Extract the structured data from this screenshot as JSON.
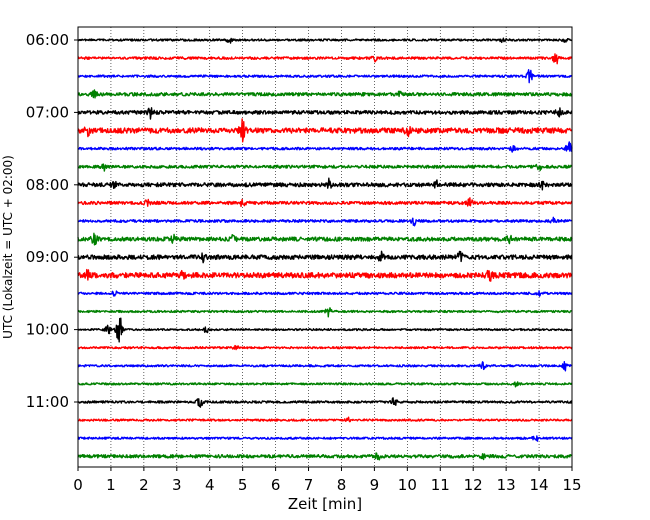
{
  "chart_data": {
    "type": "line",
    "title": "",
    "xlabel": "Zeit  [min]",
    "ylabel": "UTC (Lokalzeit = UTC + 02:00)",
    "xlim": [
      0,
      15
    ],
    "x_ticks": [
      "0",
      "1",
      "2",
      "3",
      "4",
      "5",
      "6",
      "7",
      "8",
      "9",
      "10",
      "11",
      "12",
      "13",
      "14",
      "15"
    ],
    "y_tick_labels": [
      "06:00",
      "07:00",
      "08:00",
      "09:00",
      "10:00",
      "11:00"
    ],
    "grid": "vertical dotted at each minute",
    "trace_colors": [
      "#000000",
      "#ff0000",
      "#0000ff",
      "#008000"
    ],
    "traces": [
      {
        "start": "06:00",
        "amplitude": 1.0,
        "events": [
          [
            4.6,
            3
          ],
          [
            12.9,
            2
          ],
          [
            14.8,
            2
          ]
        ]
      },
      {
        "start": "06:15",
        "amplitude": 1.2,
        "events": [
          [
            9.0,
            3
          ],
          [
            14.5,
            7
          ]
        ]
      },
      {
        "start": "06:30",
        "amplitude": 1.1,
        "events": [
          [
            13.7,
            9
          ]
        ]
      },
      {
        "start": "06:45",
        "amplitude": 1.6,
        "events": [
          [
            0.5,
            3
          ],
          [
            9.8,
            4
          ]
        ]
      },
      {
        "start": "07:00",
        "amplitude": 1.8,
        "events": [
          [
            2.2,
            5
          ],
          [
            14.6,
            5
          ]
        ]
      },
      {
        "start": "07:15",
        "amplitude": 2.6,
        "events": [
          [
            0.3,
            5
          ],
          [
            5.0,
            11
          ],
          [
            10.0,
            5
          ]
        ]
      },
      {
        "start": "07:30",
        "amplitude": 1.2,
        "events": [
          [
            13.2,
            3
          ],
          [
            14.9,
            6
          ]
        ]
      },
      {
        "start": "07:45",
        "amplitude": 1.4,
        "events": [
          [
            0.8,
            3
          ],
          [
            14.0,
            3
          ]
        ]
      },
      {
        "start": "08:00",
        "amplitude": 1.9,
        "events": [
          [
            1.1,
            4
          ],
          [
            7.6,
            5
          ],
          [
            10.9,
            3
          ],
          [
            14.1,
            5
          ]
        ]
      },
      {
        "start": "08:15",
        "amplitude": 1.5,
        "events": [
          [
            2.1,
            3
          ],
          [
            5.0,
            3
          ],
          [
            11.9,
            4
          ]
        ]
      },
      {
        "start": "08:30",
        "amplitude": 1.3,
        "events": [
          [
            10.2,
            4
          ],
          [
            14.4,
            3
          ]
        ]
      },
      {
        "start": "08:45",
        "amplitude": 2.0,
        "events": [
          [
            0.5,
            5
          ],
          [
            2.9,
            4
          ],
          [
            4.7,
            3
          ],
          [
            13.1,
            3
          ]
        ]
      },
      {
        "start": "09:00",
        "amplitude": 2.2,
        "events": [
          [
            3.8,
            4
          ],
          [
            9.2,
            4
          ],
          [
            11.6,
            4
          ]
        ]
      },
      {
        "start": "09:15",
        "amplitude": 2.6,
        "events": [
          [
            0.3,
            5
          ],
          [
            3.2,
            4
          ],
          [
            12.5,
            5
          ]
        ]
      },
      {
        "start": "09:30",
        "amplitude": 1.1,
        "events": [
          [
            1.1,
            3
          ],
          [
            14.0,
            3
          ]
        ]
      },
      {
        "start": "09:45",
        "amplitude": 1.0,
        "events": [
          [
            7.6,
            5
          ]
        ]
      },
      {
        "start": "10:00",
        "amplitude": 0.9,
        "events": [
          [
            1.25,
            17
          ],
          [
            0.9,
            5
          ],
          [
            3.9,
            3
          ]
        ]
      },
      {
        "start": "10:15",
        "amplitude": 1.0,
        "events": [
          [
            4.8,
            2
          ]
        ]
      },
      {
        "start": "10:30",
        "amplitude": 1.0,
        "events": [
          [
            12.3,
            4
          ],
          [
            14.8,
            5
          ]
        ]
      },
      {
        "start": "10:45",
        "amplitude": 1.0,
        "events": [
          [
            13.3,
            2
          ]
        ]
      },
      {
        "start": "11:00",
        "amplitude": 1.1,
        "events": [
          [
            3.7,
            5
          ],
          [
            9.6,
            4
          ]
        ]
      },
      {
        "start": "11:15",
        "amplitude": 1.0,
        "events": [
          [
            8.2,
            2
          ]
        ]
      },
      {
        "start": "11:30",
        "amplitude": 1.0,
        "events": [
          [
            13.9,
            3
          ]
        ]
      },
      {
        "start": "11:45",
        "amplitude": 1.6,
        "events": [
          [
            9.1,
            3
          ],
          [
            12.3,
            2
          ]
        ]
      }
    ]
  }
}
